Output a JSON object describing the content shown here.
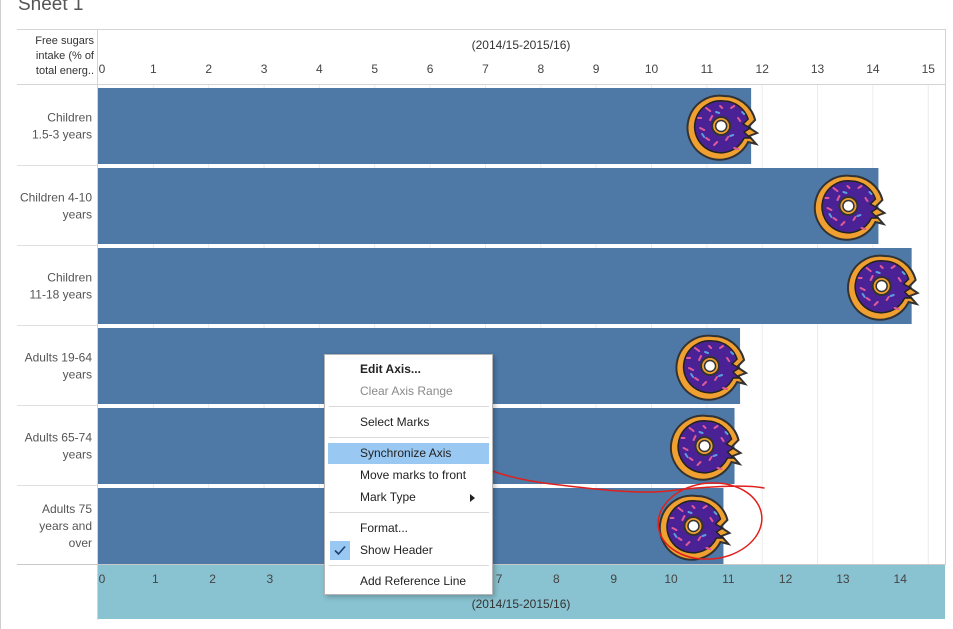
{
  "sheet_title": "Sheet 1",
  "row_header_title": "Free sugars intake (% of total energ..",
  "colors": {
    "bar": "#4e79a7",
    "highlight_band": "#89c2d0",
    "menu_highlight": "#99c9f2",
    "annotation": "#e0201b",
    "donut_dough": "#f0a030",
    "donut_icing": "#4b2296"
  },
  "chart_data": {
    "type": "bar",
    "orientation": "horizontal",
    "header_label_top": "(2014/15-2015/16)",
    "header_label_bottom": "(2014/15-2015/16)",
    "top_ticks": [
      "0",
      "1",
      "2",
      "3",
      "4",
      "5",
      "6",
      "7",
      "8",
      "9",
      "10",
      "11",
      "12",
      "13",
      "14",
      "15"
    ],
    "bottom_ticks": [
      "0",
      "1",
      "2",
      "3",
      "4",
      "5",
      "6",
      "7",
      "8",
      "9",
      "10",
      "11",
      "12",
      "13",
      "14"
    ],
    "top_axis_range": [
      0,
      15.3
    ],
    "bottom_axis_range": [
      0,
      14.7
    ],
    "categories": [
      {
        "line1": "Children",
        "line2": "1.5-3 years",
        "line3": ""
      },
      {
        "line1": "Children 4-10",
        "line2": "years",
        "line3": ""
      },
      {
        "line1": "Children",
        "line2": "11-18 years",
        "line3": ""
      },
      {
        "line1": "Adults 19-64",
        "line2": "years",
        "line3": ""
      },
      {
        "line1": "Adults 65-74",
        "line2": "years",
        "line3": ""
      },
      {
        "line1": "Adults 75",
        "line2": "years and",
        "line3": "over"
      }
    ],
    "values": [
      11.8,
      14.1,
      14.7,
      11.6,
      11.5,
      11.3
    ],
    "gridlines": true,
    "mark_icon": "donut-icon"
  },
  "context_menu": {
    "items": [
      {
        "label": "Edit Axis...",
        "style": "bold"
      },
      {
        "label": "Clear Axis Range",
        "style": "disabled"
      },
      {
        "label": "Select Marks",
        "style": "normal"
      },
      {
        "label": "Synchronize Axis",
        "style": "highlight"
      },
      {
        "label": "Move marks to front",
        "style": "normal"
      },
      {
        "label": "Mark Type",
        "style": "submenu"
      },
      {
        "label": "Format...",
        "style": "normal"
      },
      {
        "label": "Show Header",
        "style": "checked"
      },
      {
        "label": "Add Reference Line",
        "style": "normal"
      }
    ]
  }
}
